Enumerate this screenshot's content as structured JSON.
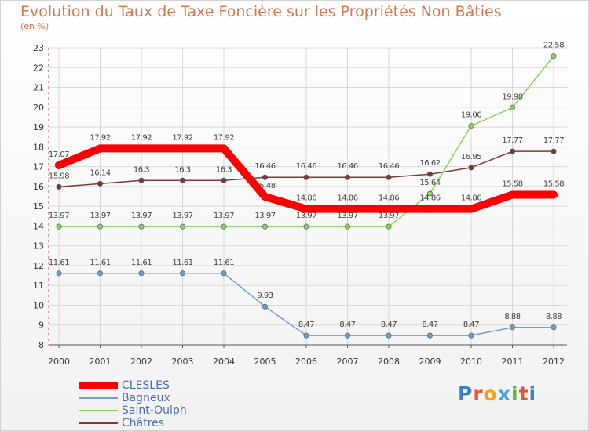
{
  "title": "Evolution du Taux de Taxe Foncière sur les Propriétés Non Bâties",
  "unit_label": "(en %)",
  "logo_text": "Proxiti",
  "colors": {
    "title": "#d9774a",
    "legend_text": "#4a6fb0",
    "grid": "#d8d8d8",
    "axis": "#555555"
  },
  "chart_data": {
    "type": "line",
    "title": "Evolution du Taux de Taxe Foncière sur les Propriétés Non Bâties",
    "ylabel": "(en %)",
    "xlabel": "",
    "x": [
      "2000",
      "2001",
      "2002",
      "2003",
      "2004",
      "2005",
      "2006",
      "2007",
      "2008",
      "2009",
      "2010",
      "2011",
      "2012"
    ],
    "ylim": [
      8,
      23
    ],
    "yticks": [
      "8",
      "9",
      "10",
      "11",
      "12",
      "13",
      "14",
      "15",
      "16",
      "17",
      "18",
      "19",
      "20",
      "21",
      "22",
      "23"
    ],
    "grid": true,
    "legend_position": "bottom-left",
    "series": [
      {
        "name": "CLESLES",
        "color": "#ff0000",
        "values": [
          17.07,
          17.92,
          17.92,
          17.92,
          17.92,
          15.48,
          14.86,
          14.86,
          14.86,
          14.86,
          14.86,
          15.58,
          15.58
        ],
        "labels": [
          "17.07",
          "17.92",
          "17.92",
          "17.92",
          "17.92",
          "15.48",
          "14.86",
          "14.86",
          "14.86",
          "14.86",
          "14.86",
          "15.58",
          "15.58"
        ]
      },
      {
        "name": "Bagneux",
        "color": "#6f9fcc",
        "values": [
          11.61,
          11.61,
          11.61,
          11.61,
          11.61,
          9.93,
          8.47,
          8.47,
          8.47,
          8.47,
          8.47,
          8.88,
          8.88
        ],
        "labels": [
          "11.61",
          "11.61",
          "11.61",
          "11.61",
          "11.61",
          "9.93",
          "8.47",
          "8.47",
          "8.47",
          "8.47",
          "8.47",
          "8.88",
          "8.88"
        ]
      },
      {
        "name": "Saint-Oulph",
        "color": "#88d45a",
        "values": [
          13.97,
          13.97,
          13.97,
          13.97,
          13.97,
          13.97,
          13.97,
          13.97,
          13.97,
          15.64,
          19.06,
          19.98,
          22.58
        ],
        "labels": [
          "13.97",
          "13.97",
          "13.97",
          "13.97",
          "13.97",
          "13.97",
          "13.97",
          "13.97",
          "13.97",
          "15.64",
          "19.06",
          "19.98",
          "22.58"
        ]
      },
      {
        "name": "Châtres",
        "color": "#7a3b3b",
        "values": [
          15.98,
          16.14,
          16.3,
          16.3,
          16.3,
          16.46,
          16.46,
          16.46,
          16.46,
          16.62,
          16.95,
          17.77,
          17.77
        ],
        "labels": [
          "15.98",
          "16.14",
          "16.3",
          "16.3",
          "16.3",
          "16.46",
          "16.46",
          "16.46",
          "16.46",
          "16.62",
          "16.95",
          "17.77",
          "17.77"
        ]
      }
    ]
  }
}
